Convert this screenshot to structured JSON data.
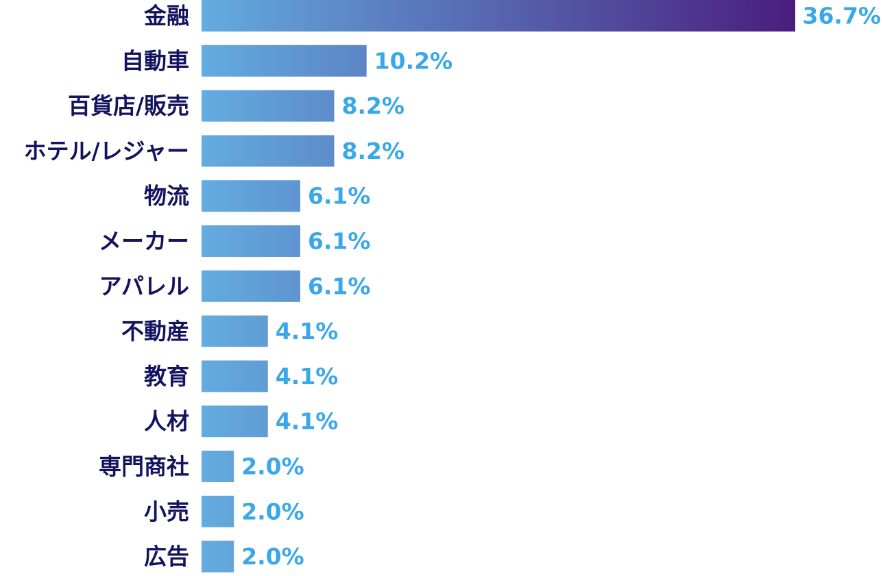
{
  "chart_data": {
    "type": "bar",
    "orientation": "horizontal",
    "categories": [
      "金融",
      "自動車",
      "百貨店/販売",
      "ホテル/レジャー",
      "物流",
      "メーカー",
      "アパレル",
      "不動産",
      "教育",
      "人材",
      "専門商社",
      "小売",
      "広告"
    ],
    "values": [
      36.7,
      10.2,
      8.2,
      8.2,
      6.1,
      6.1,
      6.1,
      4.1,
      4.1,
      4.1,
      2.0,
      2.0,
      2.0
    ],
    "value_labels": [
      "36.7%",
      "10.2%",
      "8.2%",
      "8.2%",
      "6.1%",
      "6.1%",
      "6.1%",
      "4.1%",
      "4.1%",
      "4.1%",
      "2.0%",
      "2.0%",
      "2.0%"
    ],
    "unit": "%",
    "xlim": [
      0,
      36.7
    ],
    "grid": false,
    "legend": "none"
  },
  "colors": {
    "category_text": "#13135f",
    "value_text": "#3aa8e8",
    "bar_start": "#63ace0",
    "bar_end": "#4a1d7e"
  }
}
